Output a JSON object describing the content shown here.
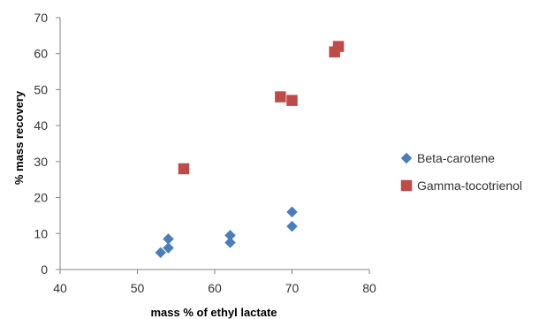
{
  "chart_data": {
    "type": "scatter",
    "xlabel": "mass % of ethyl lactate",
    "ylabel": "% mass recovery",
    "xlim": [
      40,
      80
    ],
    "ylim": [
      0,
      70
    ],
    "x_ticks": [
      40,
      50,
      60,
      70,
      80
    ],
    "y_ticks": [
      0,
      10,
      20,
      30,
      40,
      50,
      60,
      70
    ],
    "grid": false,
    "legend_position": "right",
    "series": [
      {
        "name": "Beta-carotene",
        "marker": "diamond",
        "color": "#4a7ebb",
        "points": [
          {
            "x": 53,
            "y": 4.7
          },
          {
            "x": 54,
            "y": 6.0
          },
          {
            "x": 54,
            "y": 8.5
          },
          {
            "x": 62,
            "y": 9.5
          },
          {
            "x": 62,
            "y": 7.5
          },
          {
            "x": 70,
            "y": 16.0
          },
          {
            "x": 70,
            "y": 12.0
          }
        ]
      },
      {
        "name": "Gamma-tocotrienol",
        "marker": "square",
        "color": "#be4b48",
        "points": [
          {
            "x": 56,
            "y": 28.0
          },
          {
            "x": 68.5,
            "y": 48.0
          },
          {
            "x": 70,
            "y": 47.0
          },
          {
            "x": 75.5,
            "y": 60.5
          },
          {
            "x": 76,
            "y": 62.0
          }
        ]
      }
    ]
  }
}
